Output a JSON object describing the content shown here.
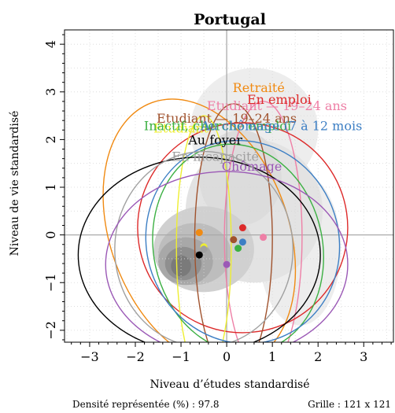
{
  "chart_data": {
    "type": "scatter",
    "title": "Portugal",
    "xlabel": "Niveau d’études standardisé",
    "ylabel": "Niveau de vie standardisé",
    "xlim": [
      -3.55,
      3.65
    ],
    "ylim": [
      -2.25,
      4.3
    ],
    "x_ticks": [
      "−3",
      "−2",
      "−1",
      "0",
      "1",
      "2",
      "3"
    ],
    "y_ticks": [
      "−2",
      "−1",
      "0",
      "1",
      "2",
      "3",
      "4"
    ],
    "grid": true,
    "footer_left": "Densité représentée (%) : 97.8",
    "footer_right": "Grille : 121 x 121",
    "series": [
      {
        "name": "Retraité",
        "color": "#f08a12",
        "point": [
          -0.6,
          0.05
        ],
        "label_pos": [
          0.7,
          3.0
        ],
        "ellipse": {
          "rx": 1.95,
          "ry": 2.9,
          "angle": -20
        }
      },
      {
        "name": "Etudiant — 19–24 ans",
        "color": "#ee7fa6",
        "point": [
          0.8,
          -0.05
        ],
        "label_pos": [
          1.1,
          2.62
        ],
        "ellipse": {
          "rx": 0.85,
          "ry": 2.85,
          "angle": 0
        }
      },
      {
        "name": "En emploi",
        "color": "#dd2a2a",
        "point": [
          0.35,
          0.15
        ],
        "label_pos": [
          1.15,
          2.75
        ],
        "ellipse": {
          "rx": 2.3,
          "ry": 2.2,
          "angle": -30
        }
      },
      {
        "name": "Etudiant — 19–24 ans",
        "color": "#a0522d",
        "point": [
          0.15,
          -0.1
        ],
        "label_pos": [
          0.0,
          2.35
        ],
        "ellipse": {
          "rx": 0.85,
          "ry": 2.85,
          "angle": 0
        }
      },
      {
        "name": "Etudiant",
        "color": "#eeee30",
        "point": [
          -0.5,
          -0.25
        ],
        "label_pos": [
          -1.0,
          2.15
        ],
        "ellipse": {
          "rx": 0.6,
          "ry": 2.75,
          "angle": 0
        }
      },
      {
        "name": "Inactif, cherche emploi",
        "color": "#3cb043",
        "point": [
          0.25,
          -0.28
        ],
        "label_pos": [
          -0.2,
          2.2
        ],
        "ellipse": {
          "rx": 1.85,
          "ry": 2.2,
          "angle": -12
        }
      },
      {
        "name": "Au chômage (7 à 12 mois",
        "color": "#3d7fc4",
        "point": [
          0.35,
          -0.15
        ],
        "label_pos": [
          1.2,
          2.2
        ],
        "ellipse": {
          "rx": 2.1,
          "ry": 2.15,
          "angle": -22
        }
      },
      {
        "name": "Au foyer",
        "color": "#000000",
        "point": [
          -0.6,
          -0.42
        ],
        "label_pos": [
          -0.25,
          1.9
        ],
        "ellipse": {
          "rx": 2.65,
          "ry": 2.05,
          "angle": 0
        }
      },
      {
        "name": "En incapacité",
        "color": "#a0a0a0",
        "point": [
          -0.5,
          -0.3
        ],
        "label_pos": [
          -0.25,
          1.55
        ],
        "ellipse": {
          "rx": 1.95,
          "ry": 2.05,
          "angle": 0
        }
      },
      {
        "name": "Chômage",
        "color": "#9b59b6",
        "point": [
          0.0,
          -0.62
        ],
        "label_pos": [
          0.55,
          1.35
        ],
        "ellipse": {
          "rx": 2.65,
          "ry": 1.95,
          "angle": 0
        }
      }
    ]
  }
}
